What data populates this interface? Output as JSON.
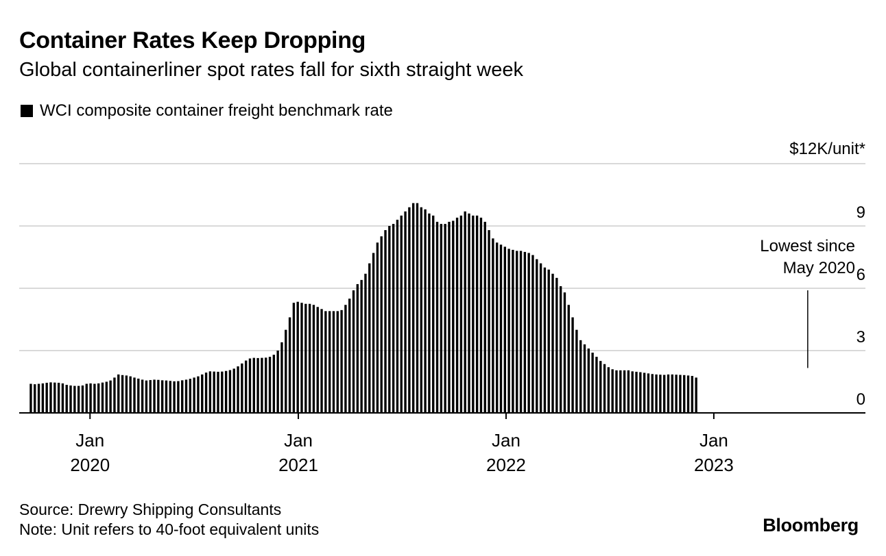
{
  "title": "Container Rates Keep Dropping",
  "subtitle": "Global containerliner spot rates fall for sixth straight week",
  "source": "Source: Drewry Shipping Consultants",
  "note": "Note: Unit refers to 40-foot equivalent units",
  "brand": "Bloomberg",
  "chart_data": {
    "type": "bar",
    "legend": [
      "WCI composite container freight benchmark rate"
    ],
    "legend_position": "top-left",
    "unit_label": "$12K/unit*",
    "ylim": [
      0,
      12000
    ],
    "y_ticks": [
      {
        "value": 0,
        "label": "0"
      },
      {
        "value": 3000,
        "label": "3"
      },
      {
        "value": 6000,
        "label": "6"
      },
      {
        "value": 9000,
        "label": "9"
      },
      {
        "value": 12000,
        "label": "$12K/unit*"
      }
    ],
    "grid": true,
    "x_axis": {
      "start": "2019-09-01",
      "end": "2023-06-20",
      "ticks": [
        {
          "date": "2020-01-01",
          "month": "Jan",
          "year": "2020"
        },
        {
          "date": "2021-01-01",
          "month": "Jan",
          "year": "2021"
        },
        {
          "date": "2022-01-01",
          "month": "Jan",
          "year": "2022"
        },
        {
          "date": "2023-01-01",
          "month": "Jan",
          "year": "2023"
        }
      ]
    },
    "series": [
      {
        "name": "WCI composite container freight benchmark rate",
        "color": "#000000",
        "start_date": "2019-09-19",
        "frequency_days": 7,
        "values": [
          1400,
          1380,
          1400,
          1420,
          1450,
          1470,
          1460,
          1450,
          1420,
          1350,
          1320,
          1300,
          1300,
          1320,
          1400,
          1420,
          1400,
          1420,
          1460,
          1500,
          1560,
          1700,
          1850,
          1820,
          1800,
          1760,
          1700,
          1650,
          1600,
          1560,
          1580,
          1600,
          1590,
          1570,
          1560,
          1540,
          1520,
          1530,
          1570,
          1600,
          1640,
          1700,
          1760,
          1850,
          1940,
          2000,
          1990,
          1980,
          1990,
          2020,
          2060,
          2130,
          2240,
          2380,
          2520,
          2620,
          2650,
          2640,
          2650,
          2660,
          2700,
          2800,
          3000,
          3400,
          4000,
          4600,
          5300,
          5350,
          5300,
          5250,
          5250,
          5200,
          5100,
          5000,
          4900,
          4900,
          4900,
          4900,
          4950,
          5200,
          5500,
          5900,
          6200,
          6400,
          6700,
          7200,
          7700,
          8200,
          8500,
          8800,
          9000,
          9100,
          9300,
          9500,
          9700,
          9900,
          10100,
          10100,
          9900,
          9800,
          9600,
          9500,
          9200,
          9100,
          9100,
          9200,
          9250,
          9400,
          9500,
          9700,
          9600,
          9500,
          9500,
          9400,
          9200,
          8800,
          8400,
          8200,
          8100,
          8000,
          7900,
          7850,
          7800,
          7800,
          7750,
          7700,
          7600,
          7400,
          7200,
          7000,
          6900,
          6700,
          6500,
          6100,
          5800,
          5200,
          4600,
          4000,
          3500,
          3300,
          3100,
          2900,
          2700,
          2500,
          2350,
          2200,
          2100,
          2050,
          2050,
          2050,
          2050,
          2000,
          1980,
          1960,
          1930,
          1900,
          1870,
          1850,
          1840,
          1830,
          1850,
          1850,
          1840,
          1830,
          1820,
          1800,
          1780,
          1700
        ]
      }
    ],
    "annotations": [
      {
        "text_lines": [
          "Lowest since",
          "May 2020"
        ],
        "target_date": "2023-06-15",
        "target_value": 1700
      }
    ]
  }
}
